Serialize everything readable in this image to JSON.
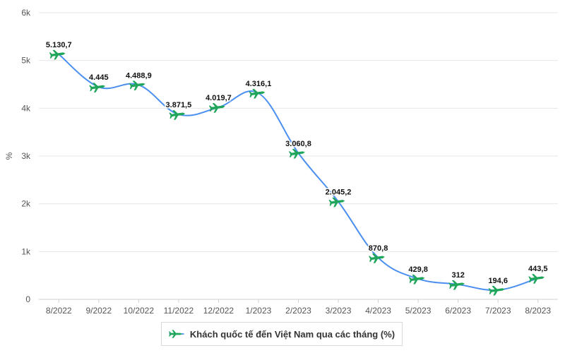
{
  "chart_data": {
    "type": "line",
    "title": "",
    "xlabel": "",
    "ylabel": "%",
    "categories": [
      "8/2022",
      "9/2022",
      "10/2022",
      "11/2022",
      "12/2022",
      "1/2023",
      "2/2023",
      "3/2023",
      "4/2023",
      "5/2023",
      "6/2023",
      "7/2023",
      "8/2023"
    ],
    "series": [
      {
        "name": "Khách quốc tế đến Việt Nam qua các tháng (%)",
        "values": [
          5130.7,
          4445,
          4488.9,
          3871.5,
          4019.7,
          4316.1,
          3060.8,
          2045.2,
          870.8,
          429.8,
          312,
          194.6,
          443.5
        ],
        "labels": [
          "5.130,7",
          "4.445",
          "4.488,9",
          "3.871,5",
          "4.019,7",
          "4.316,1",
          "3.060,8",
          "2.045,2",
          "870,8",
          "429,8",
          "312",
          "194,6",
          "443,5"
        ]
      }
    ],
    "ylim": [
      0,
      6000
    ],
    "yticks": [
      0,
      1000,
      2000,
      3000,
      4000,
      5000,
      6000
    ],
    "ytick_labels": [
      "0",
      "1k",
      "2k",
      "3k",
      "4k",
      "5k",
      "6k"
    ],
    "grid": true,
    "legend": "bottom-center",
    "line_color": "#4a8ff0",
    "marker_color": "#1fa65a",
    "marker_icon": "airplane-icon"
  }
}
